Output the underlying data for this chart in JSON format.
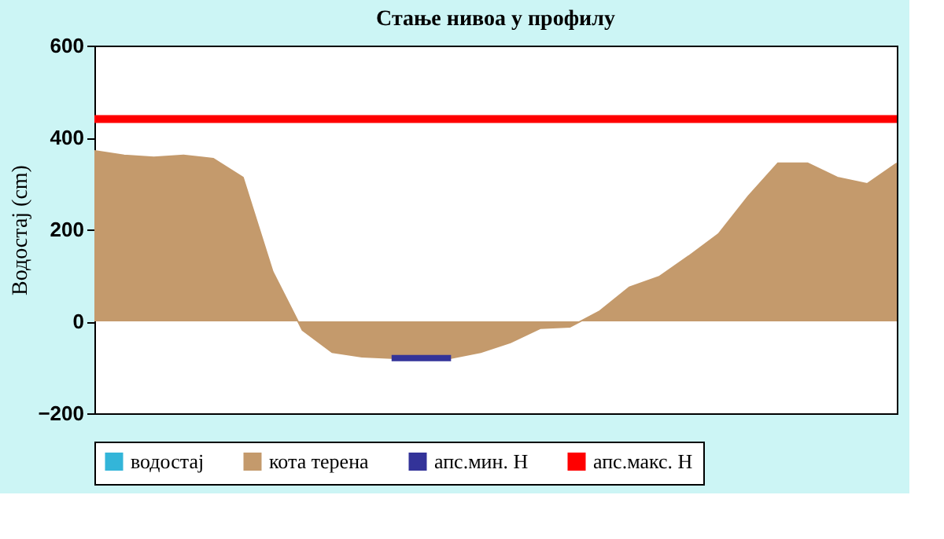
{
  "chart_data": {
    "type": "area",
    "title": "Стање нивоа у профилу",
    "ylabel": "Водостај (cm)",
    "categories": [
      null,
      null,
      null,
      null,
      null,
      null,
      null,
      null,
      null,
      null,
      null,
      null,
      null,
      null,
      null,
      null,
      null,
      null,
      null,
      null,
      null,
      null,
      null,
      null,
      null,
      null,
      null,
      null
    ],
    "series": [
      {
        "name": "водостај",
        "color": "#33b5d9",
        "values": [
          null,
          null,
          null,
          null,
          null,
          null,
          null,
          null,
          null,
          null,
          null,
          null,
          null,
          null,
          null,
          null,
          null,
          null,
          null,
          null,
          null,
          null,
          null,
          null,
          null,
          null,
          null,
          null
        ]
      },
      {
        "name": "кота терена",
        "color": "#c49a6c",
        "values": [
          371,
          361,
          357,
          361,
          354,
          313,
          108,
          -19,
          -67,
          -77,
          -80,
          -80,
          -80,
          -67,
          -46,
          -15,
          -12,
          22,
          74,
          97,
          142,
          190,
          272,
          344,
          344,
          313,
          299,
          344
        ]
      },
      {
        "name": "апс.мин. H",
        "type": "line",
        "color": "#333399",
        "values": [
          null,
          null,
          null,
          null,
          null,
          null,
          null,
          null,
          null,
          null,
          -80,
          -80,
          -80,
          null,
          null,
          null,
          null,
          null,
          null,
          null,
          null,
          null,
          null,
          null,
          null,
          null,
          null,
          null
        ]
      },
      {
        "name": "апс.макс. H",
        "type": "line",
        "color": "#ff0000",
        "values": [
          440,
          440,
          440,
          440,
          440,
          440,
          440,
          440,
          440,
          440,
          440,
          440,
          440,
          440,
          440,
          440,
          440,
          440,
          440,
          440,
          440,
          440,
          440,
          440,
          440,
          440,
          440,
          440
        ]
      }
    ],
    "ylim": [
      -200,
      600
    ],
    "yticks": [
      -200,
      0,
      200,
      400,
      600
    ],
    "grid": false,
    "legend": "bottom",
    "tick_labels": "y"
  }
}
